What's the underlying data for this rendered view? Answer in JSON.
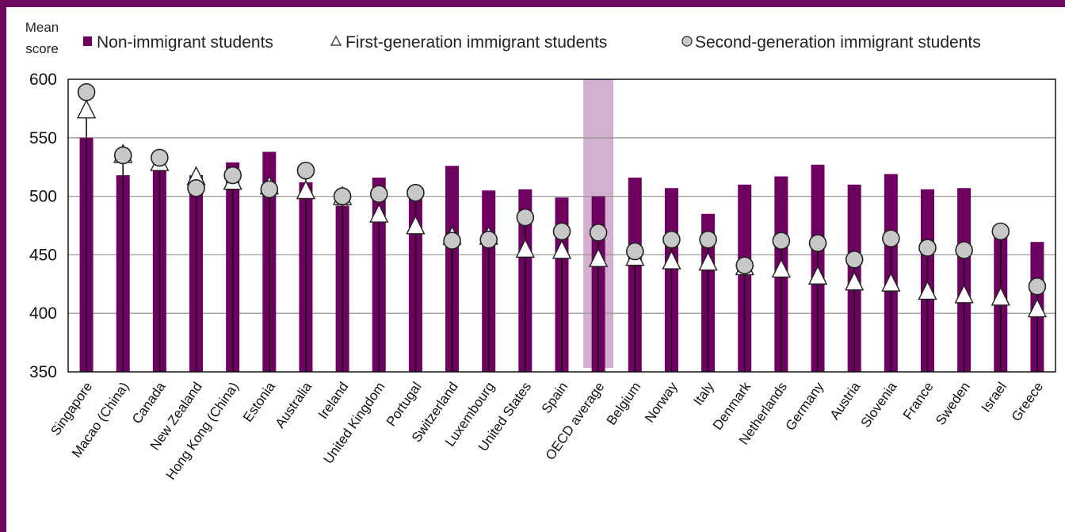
{
  "colors": {
    "frame": "#6b0a5e",
    "bar": "#6e0060",
    "highlight": "#d4b0d0",
    "marker_fill_first": "#ffffff",
    "marker_fill_second": "#c8c8c8",
    "marker_stroke": "#222222",
    "grid": "#9a9a9a"
  },
  "chart_data": {
    "type": "bar",
    "ylabel_lines": [
      "Mean",
      "score"
    ],
    "ylim": [
      350,
      600
    ],
    "yticks": [
      350,
      400,
      450,
      500,
      550,
      600
    ],
    "grid": true,
    "legend_position": "top",
    "highlight_category": "OECD average",
    "categories": [
      "Singapore",
      "Macao (China)",
      "Canada",
      "New Zealand",
      "Hong Kong (China)",
      "Estonia",
      "Australia",
      "Ireland",
      "United Kingdom",
      "Portugal",
      "Switzerland",
      "Luxembourg",
      "United States",
      "Spain",
      "OECD average",
      "Belgium",
      "Norway",
      "Italy",
      "Denmark",
      "Netherlands",
      "Germany",
      "Austria",
      "Slovenia",
      "France",
      "Sweden",
      "Israel",
      "Greece"
    ],
    "series": [
      {
        "name": "Non-immigrant students",
        "marker": "bar",
        "values": [
          550,
          518,
          523,
          518,
          529,
          538,
          512,
          492,
          516,
          498,
          526,
          505,
          506,
          499,
          500,
          516,
          507,
          485,
          510,
          517,
          527,
          510,
          519,
          506,
          507,
          467,
          461
        ]
      },
      {
        "name": "First-generation immigrant students",
        "marker": "triangle",
        "values": [
          573,
          535,
          528,
          516,
          512,
          508,
          504,
          499,
          484,
          474,
          465,
          465,
          454,
          453,
          446,
          447,
          444,
          443,
          439,
          437,
          431,
          426,
          425,
          418,
          415,
          413,
          403
        ]
      },
      {
        "name": "Second-generation immigrant students",
        "marker": "circle",
        "values": [
          589,
          535,
          533,
          507,
          518,
          506,
          522,
          500,
          502,
          503,
          462,
          463,
          482,
          470,
          469,
          453,
          463,
          463,
          441,
          462,
          460,
          446,
          464,
          456,
          454,
          470,
          423
        ]
      }
    ]
  }
}
